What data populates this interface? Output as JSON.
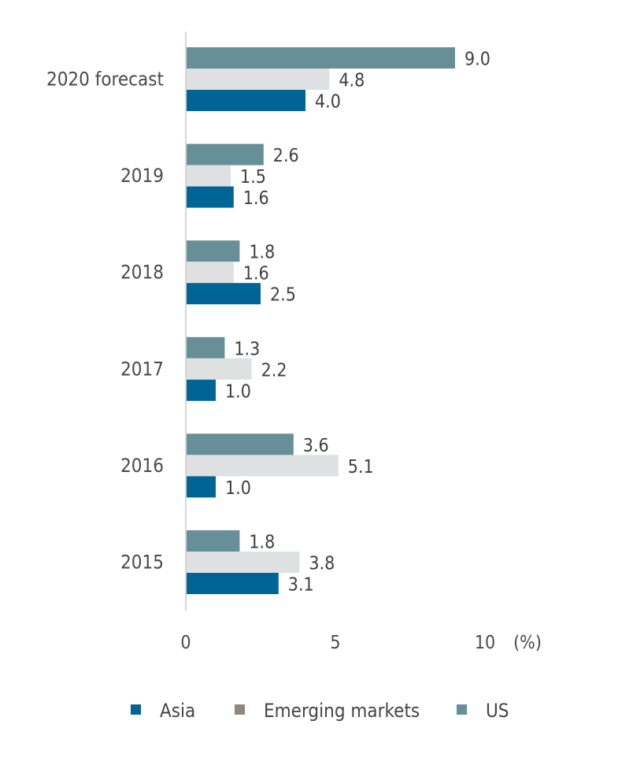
{
  "chart_data": {
    "type": "bar",
    "orientation": "horizontal",
    "categories": [
      "2020 forecast",
      "2019",
      "2018",
      "2017",
      "2016",
      "2015"
    ],
    "series": [
      {
        "name": "US",
        "color": "#668f97",
        "values": [
          9.0,
          2.6,
          1.8,
          1.3,
          3.6,
          1.8
        ]
      },
      {
        "name": "Emerging markets",
        "color": "#dfe0e2",
        "legend_color": "#8f877e",
        "values": [
          4.8,
          1.5,
          1.6,
          2.2,
          5.1,
          3.8
        ]
      },
      {
        "name": "Asia",
        "color": "#006496",
        "values": [
          4.0,
          1.6,
          2.5,
          1.0,
          1.0,
          3.1
        ]
      }
    ],
    "value_labels": [
      [
        "9.0",
        "4.8",
        "4.0"
      ],
      [
        "2.6",
        "1.5",
        "1.6"
      ],
      [
        "1.8",
        "1.6",
        "2.5"
      ],
      [
        "1.3",
        "2.2",
        "1.0"
      ],
      [
        "3.6",
        "5.1",
        "1.0"
      ],
      [
        "1.8",
        "3.8",
        "3.1"
      ]
    ],
    "xlim": [
      0,
      10
    ],
    "xticks": [
      "0",
      "5",
      "10"
    ],
    "xunit": "(%)",
    "title": "",
    "xlabel": "",
    "ylabel": "",
    "grid": false,
    "legend": {
      "placement": "bottom",
      "entries": [
        {
          "label": "Asia",
          "color": "#006496"
        },
        {
          "label": "Emerging markets",
          "color": "#8f877e"
        },
        {
          "label": "US",
          "color": "#668f97"
        }
      ]
    }
  }
}
